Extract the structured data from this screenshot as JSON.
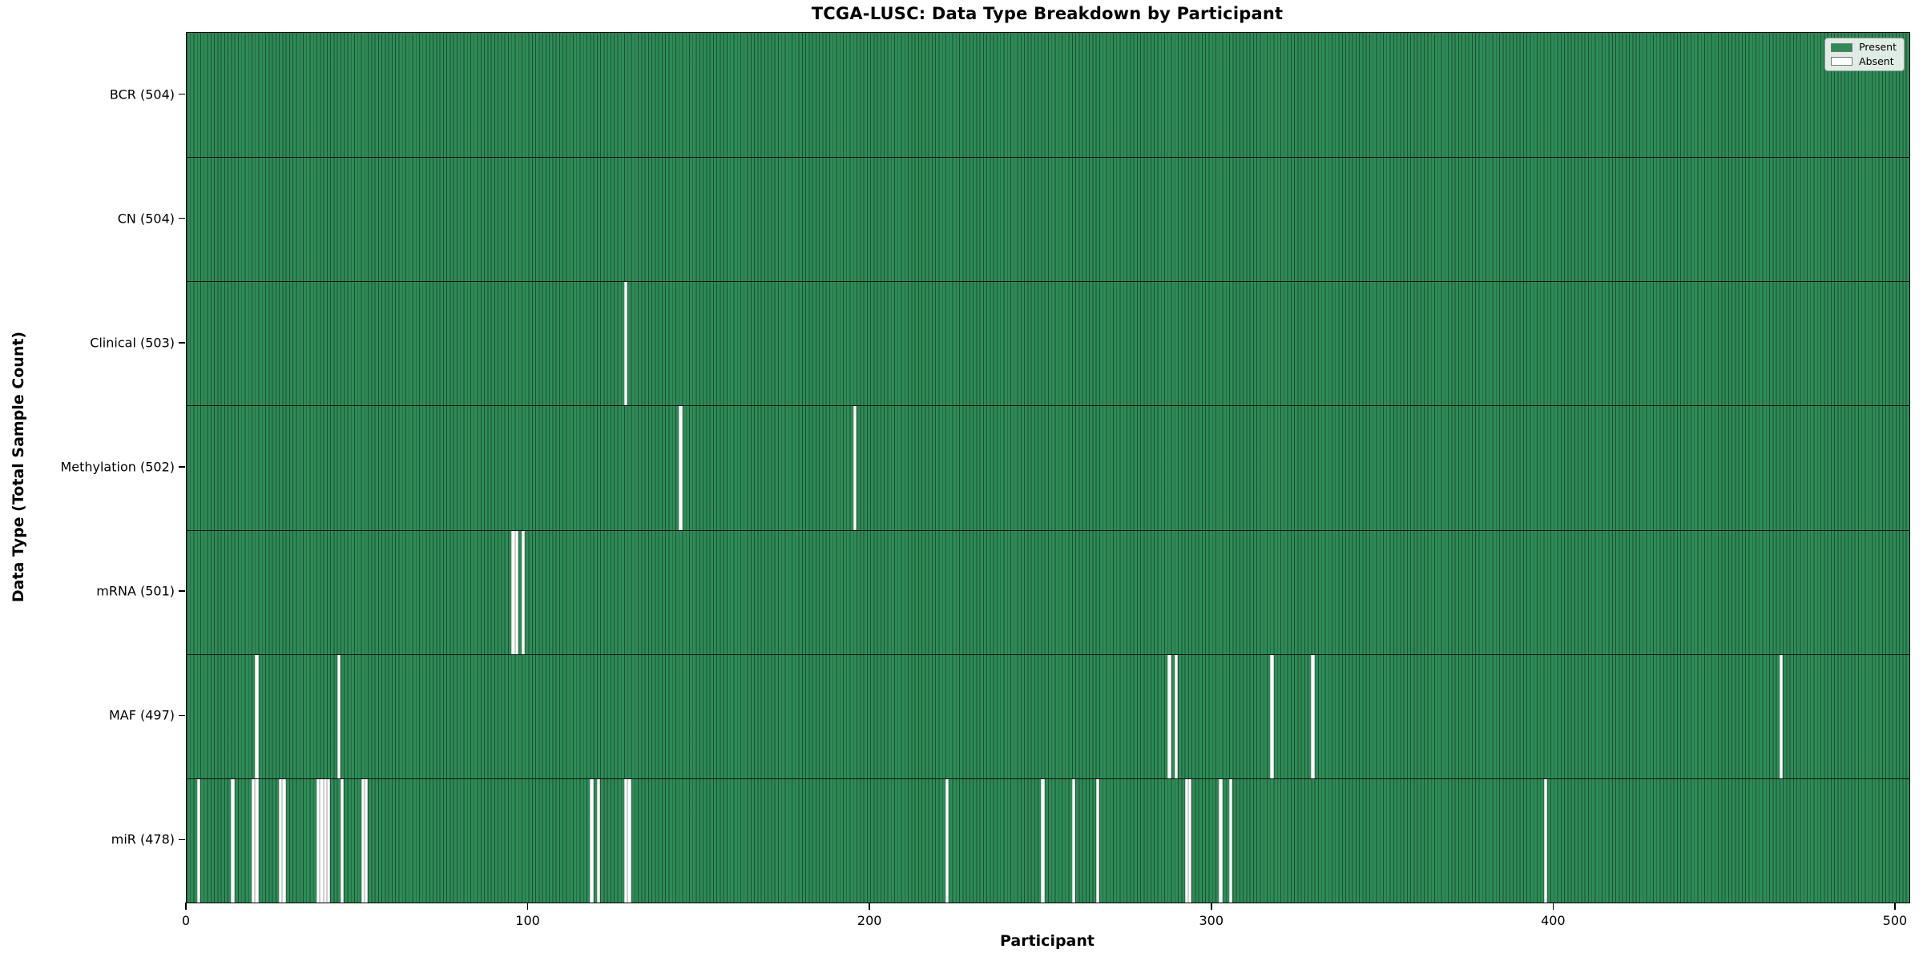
{
  "figure": {
    "title": "TCGA-LUSC: Data Type Breakdown by Participant",
    "xlabel": "Participant",
    "ylabel": "Data Type (Total Sample Count)"
  },
  "legend": {
    "items": [
      {
        "label": "Present",
        "color": "#2e8b57"
      },
      {
        "label": "Absent",
        "color": "#ffffff"
      }
    ]
  },
  "chart_data": {
    "type": "heatmap",
    "title": "TCGA-LUSC: Data Type Breakdown by Participant",
    "xlabel": "Participant",
    "ylabel": "Data Type (Total Sample Count)",
    "legend_entries": [
      "Present",
      "Absent"
    ],
    "legend_position": "upper right",
    "present_color": "#2e8b57",
    "absent_color": "#ffffff",
    "bar_edge_color": "#1c3f2b",
    "n_participants": 504,
    "x_range": [
      0,
      504
    ],
    "x_ticks": [
      0,
      100,
      200,
      300,
      400,
      500
    ],
    "rows": [
      {
        "name": "BCR",
        "label": "BCR (504)",
        "total": 504,
        "absent_participants": []
      },
      {
        "name": "CN",
        "label": "CN (504)",
        "total": 504,
        "absent_participants": []
      },
      {
        "name": "Clinical",
        "label": "Clinical (503)",
        "total": 503,
        "absent_participants": [
          128
        ]
      },
      {
        "name": "Methylation",
        "label": "Methylation (502)",
        "total": 502,
        "absent_participants": [
          144,
          195
        ]
      },
      {
        "name": "mRNA",
        "label": "mRNA (501)",
        "total": 501,
        "absent_participants": [
          95,
          96,
          98
        ]
      },
      {
        "name": "MAF",
        "label": "MAF (497)",
        "total": 497,
        "absent_participants": [
          20,
          44,
          287,
          289,
          317,
          329,
          466
        ]
      },
      {
        "name": "miR",
        "label": "miR (478)",
        "total": 478,
        "absent_participants": [
          3,
          13,
          19,
          20,
          27,
          28,
          38,
          39,
          40,
          41,
          45,
          51,
          52,
          118,
          120,
          128,
          129,
          222,
          250,
          259,
          266,
          292,
          293,
          302,
          305,
          397
        ]
      }
    ]
  }
}
